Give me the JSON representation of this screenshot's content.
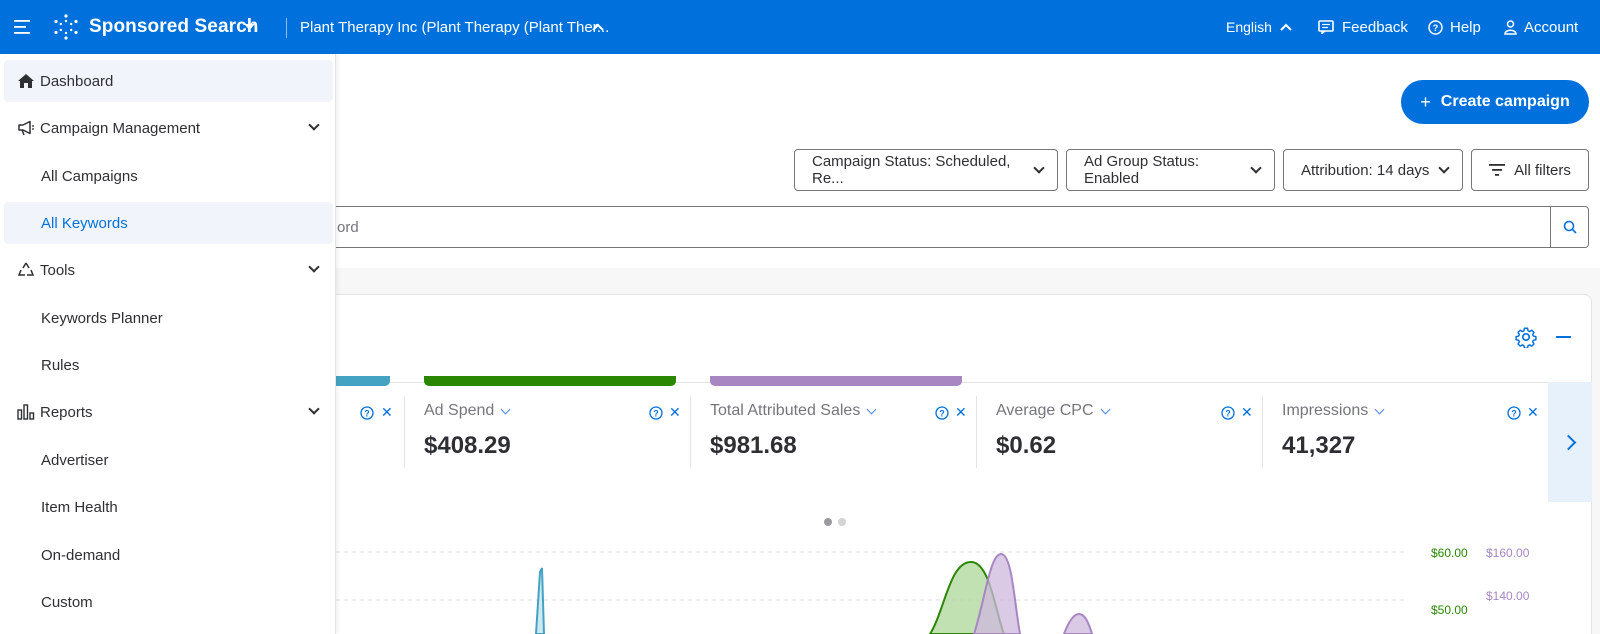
{
  "header": {
    "app_name": "Sponsored Search",
    "account_name": "Plant Therapy Inc (Plant Therapy (Plant Ther...",
    "language": "English",
    "feedback_label": "Feedback",
    "help_label": "Help",
    "account_label": "Account"
  },
  "toolbar": {
    "create_campaign_label": "Create campaign",
    "filters": [
      "Campaign Status: Scheduled, Re...",
      "Ad Group Status: Enabled",
      "Attribution: 14 days"
    ],
    "all_filters_label": "All filters"
  },
  "search": {
    "placeholder_visible": "ord"
  },
  "metrics": [
    {
      "label": "Ad Spend",
      "value": "$408.29",
      "color": "#2a8703"
    },
    {
      "label": "Total Attributed Sales",
      "value": "$981.68",
      "color": "#a786c2"
    },
    {
      "label": "Average CPC",
      "value": "$0.62",
      "color": ""
    },
    {
      "label": "Impressions",
      "value": "41,327",
      "color": ""
    }
  ],
  "partial_metric_color": "#44a3c2",
  "carousel": {
    "pages": 2,
    "active": 1
  },
  "chart_axis": {
    "left_ticks": [
      "$60.00",
      "$50.00"
    ],
    "right_ticks": [
      "$160.00",
      "$140.00"
    ],
    "left_color": "#2a8703",
    "right_color": "#a786c2"
  },
  "sidebar": {
    "items": [
      {
        "label": "Dashboard",
        "icon": "home-icon"
      },
      {
        "label": "Campaign Management",
        "icon": "megaphone-icon"
      },
      {
        "label": "All Campaigns"
      },
      {
        "label": "All Keywords"
      },
      {
        "label": "Tools",
        "icon": "recycle-icon"
      },
      {
        "label": "Keywords Planner"
      },
      {
        "label": "Rules"
      },
      {
        "label": "Reports",
        "icon": "bar-chart-icon"
      },
      {
        "label": "Advertiser"
      },
      {
        "label": "Item Health"
      },
      {
        "label": "On-demand"
      },
      {
        "label": "Custom"
      }
    ]
  },
  "colors": {
    "brand": "#0071dc"
  }
}
